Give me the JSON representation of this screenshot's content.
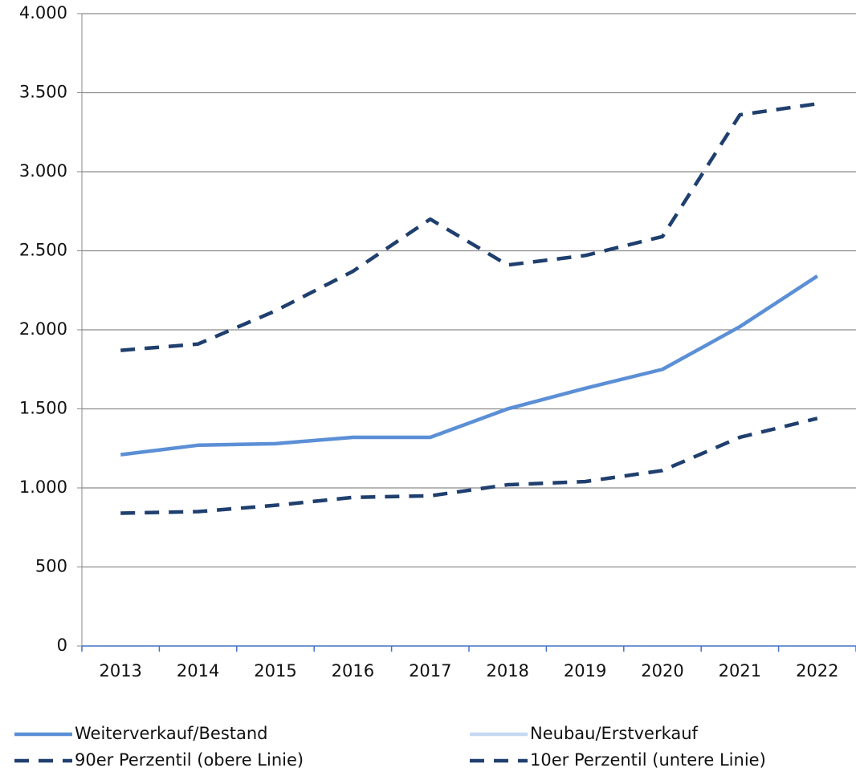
{
  "chart_data": {
    "type": "line",
    "categories": [
      "2013",
      "2014",
      "2015",
      "2016",
      "2017",
      "2018",
      "2019",
      "2020",
      "2021",
      "2022"
    ],
    "series": [
      {
        "name": "Weiterverkauf/Bestand",
        "color": "#5b8fd6",
        "style": "solid",
        "values": [
          1210,
          1270,
          1280,
          1320,
          1320,
          1500,
          1630,
          1750,
          2020,
          2340
        ]
      },
      {
        "name": "Neubau/Erstverkauf",
        "color": "#c6d9f1",
        "style": "solid",
        "values": [
          null,
          null,
          null,
          null,
          null,
          null,
          null,
          null,
          null,
          null
        ]
      },
      {
        "name": "90er Perzentil (obere Linie)",
        "color": "#1f3f6e",
        "style": "dashed",
        "values": [
          1870,
          1910,
          2120,
          2370,
          2700,
          2410,
          2470,
          2590,
          3360,
          3430
        ]
      },
      {
        "name": "10er Perzentil (untere Linie)",
        "color": "#1f3f6e",
        "style": "dashed",
        "values": [
          840,
          850,
          890,
          940,
          950,
          1020,
          1040,
          1110,
          1320,
          1440
        ]
      }
    ],
    "ylim": [
      0,
      4000
    ],
    "yticks": [
      0,
      500,
      {
        "value": 1000,
        "label": "1.000"
      },
      {
        "value": 1500,
        "label": "1.500"
      },
      {
        "value": 2000,
        "label": "2.000"
      },
      {
        "value": 2500,
        "label": "2.500"
      },
      {
        "value": 3000,
        "label": "3.000"
      },
      {
        "value": 3500,
        "label": "3.500"
      },
      {
        "value": 4000,
        "label": "4.000"
      }
    ],
    "grid": true,
    "legend": "bottom"
  }
}
